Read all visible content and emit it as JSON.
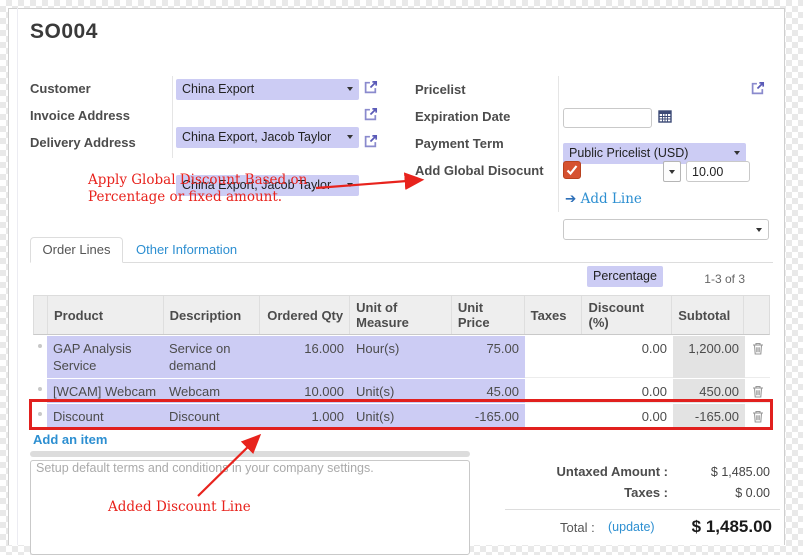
{
  "window": {
    "title": "SO004"
  },
  "colors": {
    "field_purple": "#ccccf4",
    "link_blue": "#2d8fd1",
    "annotation_red": "#e8231d",
    "checkbox_orange": "#d65130",
    "subtotal_gray": "#e3e3e3",
    "header_gray": "#eeeeee"
  },
  "form": {
    "left_fields": [
      {
        "label": "Customer",
        "value": "China Export"
      },
      {
        "label": "Invoice Address",
        "value": "China Export, Jacob Taylor"
      },
      {
        "label": "Delivery Address",
        "value": "China Export, Jacob Taylor"
      }
    ],
    "pricelist": {
      "label": "Pricelist",
      "value": "Public Pricelist (USD)"
    },
    "expiration_date": {
      "label": "Expiration Date",
      "value": ""
    },
    "payment_term": {
      "label": "Payment Term",
      "value": ""
    },
    "global_discount": {
      "label": "Add Global Disocunt",
      "checked": true,
      "type": "Percentage",
      "amount": "10.00"
    },
    "add_line_label": "Add Line"
  },
  "annotations": [
    {
      "text": "Apply Global Discount Based on Percentage or fixed amount."
    },
    {
      "text": "Added Discount Line"
    }
  ],
  "tabs": [
    {
      "label": "Order Lines",
      "active": true
    },
    {
      "label": "Other Information",
      "active": false
    }
  ],
  "pager": {
    "text": "1-3 of 3"
  },
  "order_lines": {
    "headers": [
      "Product",
      "Description",
      "Ordered Qty",
      "Unit of Measure",
      "Unit Price",
      "Taxes",
      "Discount (%)",
      "Subtotal"
    ],
    "rows": [
      {
        "product": "GAP Analysis Service",
        "description": "Service on demand",
        "qty": "16.000",
        "uom": "Hour(s)",
        "price": "75.00",
        "taxes": "",
        "discount": "0.00",
        "subtotal": "1,200.00",
        "highlighted": false
      },
      {
        "product": "[WCAM] Webcam",
        "description": "Webcam",
        "qty": "10.000",
        "uom": "Unit(s)",
        "price": "45.00",
        "taxes": "",
        "discount": "0.00",
        "subtotal": "450.00",
        "highlighted": false
      },
      {
        "product": "Discount",
        "description": "Discount",
        "qty": "1.000",
        "uom": "Unit(s)",
        "price": "-165.00",
        "taxes": "",
        "discount": "0.00",
        "subtotal": "-165.00",
        "highlighted": true
      }
    ],
    "add_item_label": "Add an item"
  },
  "notes": {
    "placeholder": "Setup default terms and conditions in your company settings."
  },
  "totals": {
    "untaxed_label": "Untaxed Amount :",
    "untaxed_value": "$ 1,485.00",
    "taxes_label": "Taxes :",
    "taxes_value": "$ 0.00",
    "total_label": "Total :",
    "update_link": "(update)",
    "total_value": "$ 1,485.00"
  }
}
